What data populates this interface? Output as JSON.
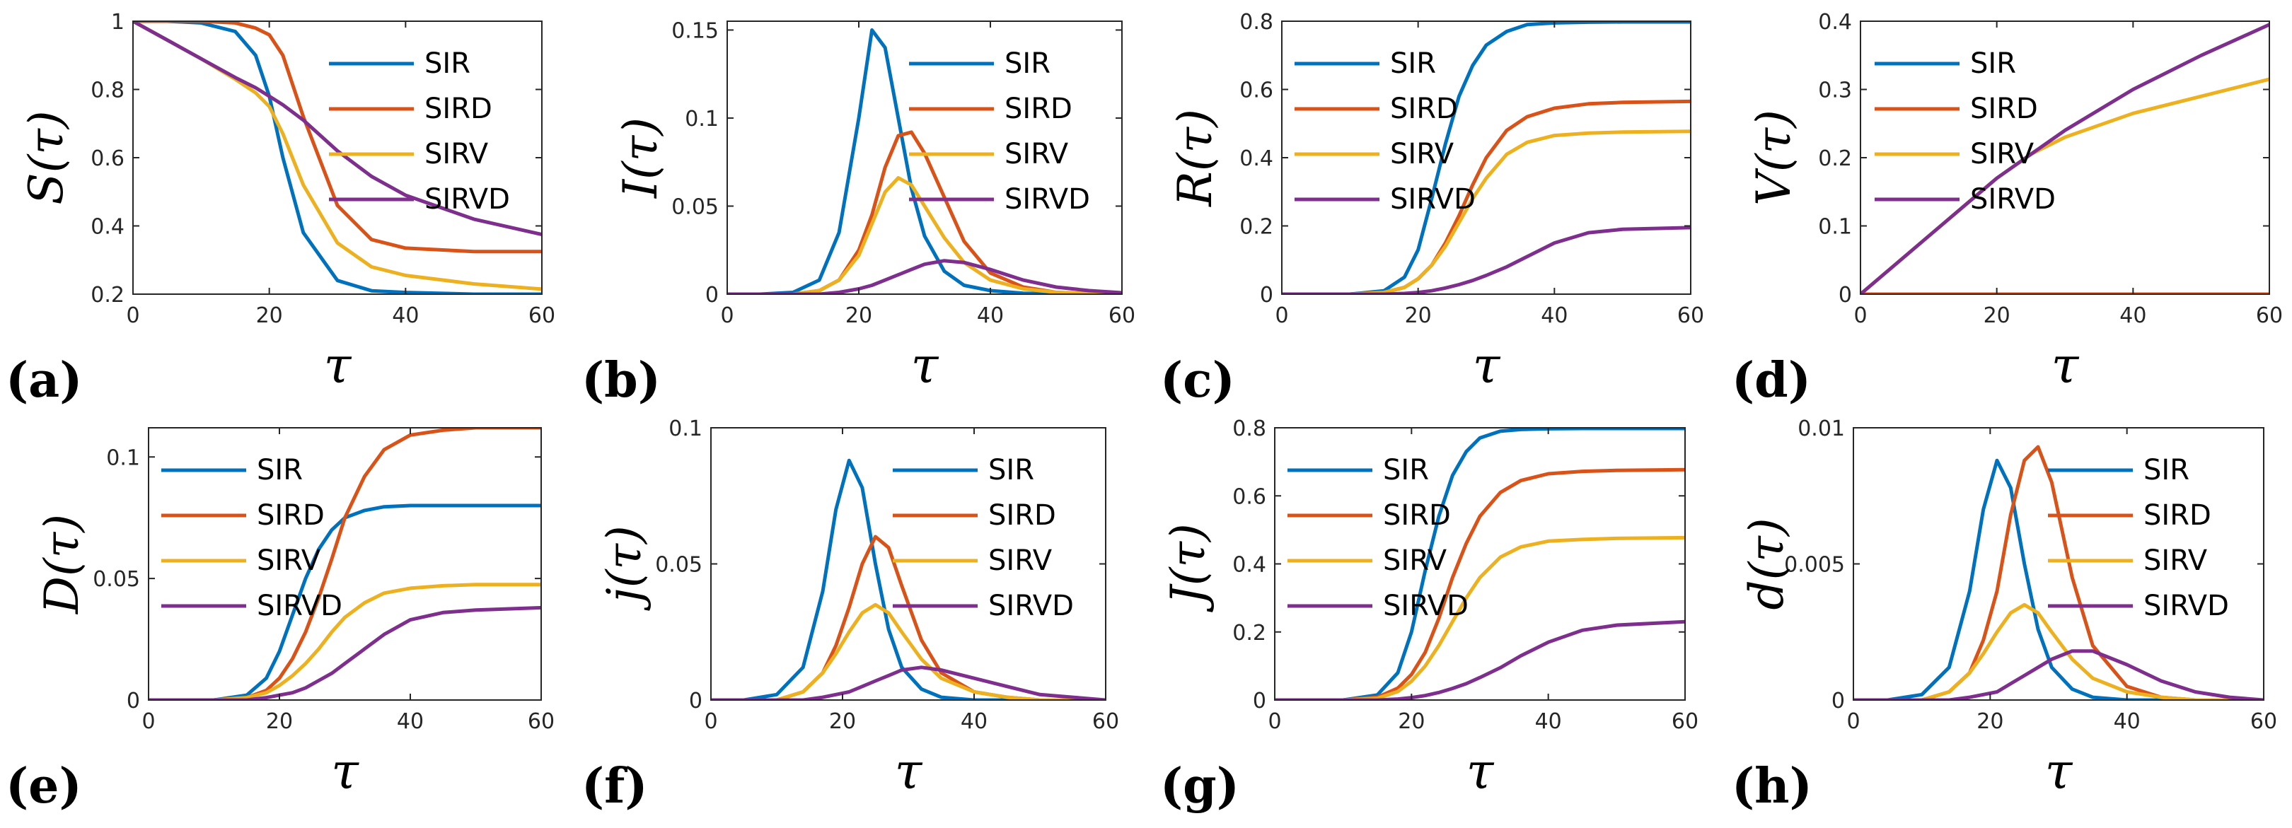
{
  "colors": {
    "SIR": "#0072BD",
    "SIRD": "#D95319",
    "SIRV": "#EDB120",
    "SIRVD": "#7E2F8E",
    "axis": "#262626"
  },
  "chart_data": [
    {
      "type": "line",
      "panel": "(a)",
      "ylabel": "S(τ)",
      "xlabel": "τ",
      "xlim": [
        0,
        60
      ],
      "ylim": [
        0.2,
        1
      ],
      "xticks": [
        0,
        20,
        40,
        60
      ],
      "xticklabels": [
        "0",
        "20",
        "40",
        "60"
      ],
      "yticks": [
        0.2,
        0.4,
        0.6,
        0.8,
        1
      ],
      "yticklabels": [
        "0.2",
        "0.4",
        "0.6",
        "0.8",
        "1"
      ],
      "legend": [
        "SIR",
        "SIRD",
        "SIRV",
        "SIRVD"
      ],
      "x": [
        0,
        5,
        10,
        15,
        18,
        20,
        22,
        25,
        30,
        35,
        40,
        50,
        60
      ],
      "series": [
        {
          "name": "SIR",
          "values": [
            1,
            1,
            0.995,
            0.97,
            0.9,
            0.78,
            0.6,
            0.38,
            0.24,
            0.21,
            0.205,
            0.2,
            0.2
          ]
        },
        {
          "name": "SIRD",
          "values": [
            1,
            1,
            1,
            0.995,
            0.98,
            0.96,
            0.9,
            0.72,
            0.46,
            0.36,
            0.335,
            0.325,
            0.325
          ]
        },
        {
          "name": "SIRV",
          "values": [
            1,
            0.945,
            0.89,
            0.83,
            0.79,
            0.75,
            0.67,
            0.52,
            0.35,
            0.28,
            0.255,
            0.23,
            0.215
          ]
        },
        {
          "name": "SIRVD",
          "values": [
            1,
            0.945,
            0.89,
            0.835,
            0.805,
            0.78,
            0.755,
            0.71,
            0.62,
            0.545,
            0.49,
            0.42,
            0.375
          ]
        }
      ]
    },
    {
      "type": "line",
      "panel": "(b)",
      "ylabel": "I(τ)",
      "xlabel": "τ",
      "xlim": [
        0,
        60
      ],
      "ylim": [
        0,
        0.155
      ],
      "xticks": [
        0,
        20,
        40,
        60
      ],
      "xticklabels": [
        "0",
        "20",
        "40",
        "60"
      ],
      "yticks": [
        0,
        0.05,
        0.1,
        0.15
      ],
      "yticklabels": [
        "0",
        "0.05",
        "0.1",
        "0.15"
      ],
      "legend": [
        "SIR",
        "SIRD",
        "SIRV",
        "SIRVD"
      ],
      "x": [
        0,
        5,
        10,
        14,
        17,
        20,
        22,
        24,
        26,
        28,
        30,
        33,
        36,
        40,
        45,
        50,
        55,
        60
      ],
      "series": [
        {
          "name": "SIR",
          "values": [
            0,
            0,
            0.001,
            0.008,
            0.035,
            0.1,
            0.15,
            0.14,
            0.1,
            0.06,
            0.033,
            0.013,
            0.005,
            0.002,
            0.0005,
            0.0001,
            0,
            0
          ]
        },
        {
          "name": "SIRD",
          "values": [
            0,
            0,
            0,
            0.002,
            0.008,
            0.025,
            0.045,
            0.072,
            0.09,
            0.092,
            0.08,
            0.055,
            0.03,
            0.012,
            0.004,
            0.001,
            0.0003,
            0
          ]
        },
        {
          "name": "SIRV",
          "values": [
            0,
            0,
            0,
            0.002,
            0.008,
            0.022,
            0.04,
            0.058,
            0.066,
            0.062,
            0.05,
            0.032,
            0.018,
            0.008,
            0.003,
            0.001,
            0.0003,
            0
          ]
        },
        {
          "name": "SIRVD",
          "values": [
            0,
            0,
            0,
            0,
            0.001,
            0.003,
            0.005,
            0.008,
            0.011,
            0.014,
            0.017,
            0.019,
            0.018,
            0.014,
            0.008,
            0.004,
            0.002,
            0.0008
          ]
        }
      ]
    },
    {
      "type": "line",
      "panel": "(c)",
      "ylabel": "R(τ)",
      "xlabel": "τ",
      "xlim": [
        0,
        60
      ],
      "ylim": [
        0,
        0.8
      ],
      "xticks": [
        0,
        20,
        40,
        60
      ],
      "xticklabels": [
        "0",
        "20",
        "40",
        "60"
      ],
      "yticks": [
        0,
        0.2,
        0.4,
        0.6,
        0.8
      ],
      "yticklabels": [
        "0",
        "0.2",
        "0.4",
        "0.6",
        "0.8"
      ],
      "legend": [
        "SIR",
        "SIRD",
        "SIRV",
        "SIRVD"
      ],
      "x": [
        0,
        10,
        15,
        18,
        20,
        22,
        24,
        26,
        28,
        30,
        33,
        36,
        40,
        45,
        50,
        60
      ],
      "series": [
        {
          "name": "SIR",
          "values": [
            0,
            0,
            0.01,
            0.05,
            0.13,
            0.28,
            0.44,
            0.58,
            0.67,
            0.73,
            0.77,
            0.79,
            0.795,
            0.797,
            0.798,
            0.798
          ]
        },
        {
          "name": "SIRD",
          "values": [
            0,
            0,
            0.005,
            0.02,
            0.045,
            0.085,
            0.15,
            0.23,
            0.32,
            0.4,
            0.48,
            0.52,
            0.545,
            0.558,
            0.562,
            0.565
          ]
        },
        {
          "name": "SIRV",
          "values": [
            0,
            0,
            0.005,
            0.02,
            0.045,
            0.085,
            0.14,
            0.21,
            0.28,
            0.34,
            0.41,
            0.445,
            0.465,
            0.472,
            0.475,
            0.477
          ]
        },
        {
          "name": "SIRVD",
          "values": [
            0,
            0,
            0,
            0.002,
            0.005,
            0.01,
            0.018,
            0.028,
            0.04,
            0.055,
            0.08,
            0.11,
            0.15,
            0.18,
            0.19,
            0.195
          ]
        }
      ]
    },
    {
      "type": "line",
      "panel": "(d)",
      "ylabel": "V(τ)",
      "xlabel": "τ",
      "xlim": [
        0,
        60
      ],
      "ylim": [
        0,
        0.4
      ],
      "xticks": [
        0,
        20,
        40,
        60
      ],
      "xticklabels": [
        "0",
        "20",
        "40",
        "60"
      ],
      "yticks": [
        0,
        0.1,
        0.2,
        0.3,
        0.4
      ],
      "yticklabels": [
        "0",
        "0.1",
        "0.2",
        "0.3",
        "0.4"
      ],
      "legend": [
        "SIR",
        "SIRD",
        "SIRV",
        "SIRVD"
      ],
      "x": [
        0,
        10,
        20,
        25,
        30,
        40,
        50,
        60
      ],
      "series": [
        {
          "name": "SIR",
          "values": [
            0,
            0,
            0,
            0,
            0,
            0,
            0,
            0
          ]
        },
        {
          "name": "SIRD",
          "values": [
            0,
            0,
            0,
            0,
            0,
            0,
            0,
            0
          ]
        },
        {
          "name": "SIRV",
          "values": [
            0,
            0.085,
            0.17,
            0.205,
            0.23,
            0.265,
            0.29,
            0.315
          ]
        },
        {
          "name": "SIRVD",
          "values": [
            0,
            0.085,
            0.17,
            0.205,
            0.24,
            0.3,
            0.35,
            0.395
          ]
        }
      ]
    },
    {
      "type": "line",
      "panel": "(e)",
      "ylabel": "D(τ)",
      "xlabel": "τ",
      "xlim": [
        0,
        60
      ],
      "ylim": [
        0,
        0.112
      ],
      "xticks": [
        0,
        20,
        40,
        60
      ],
      "xticklabels": [
        "0",
        "20",
        "40",
        "60"
      ],
      "yticks": [
        0,
        0.05,
        0.1
      ],
      "yticklabels": [
        "0",
        "0.05",
        "0.1"
      ],
      "legend": [
        "SIR",
        "SIRD",
        "SIRV",
        "SIRVD"
      ],
      "x": [
        0,
        10,
        15,
        18,
        20,
        22,
        24,
        26,
        28,
        30,
        33,
        36,
        40,
        45,
        50,
        60
      ],
      "series": [
        {
          "name": "SIR",
          "values": [
            0,
            0,
            0.002,
            0.009,
            0.02,
            0.035,
            0.05,
            0.062,
            0.07,
            0.075,
            0.078,
            0.0795,
            0.08,
            0.08,
            0.08,
            0.08
          ]
        },
        {
          "name": "SIRD",
          "values": [
            0,
            0,
            0.001,
            0.004,
            0.009,
            0.017,
            0.028,
            0.042,
            0.058,
            0.075,
            0.092,
            0.103,
            0.109,
            0.111,
            0.112,
            0.112
          ]
        },
        {
          "name": "SIRV",
          "values": [
            0,
            0,
            0.001,
            0.003,
            0.006,
            0.01,
            0.015,
            0.021,
            0.028,
            0.034,
            0.04,
            0.044,
            0.046,
            0.047,
            0.0475,
            0.0475
          ]
        },
        {
          "name": "SIRVD",
          "values": [
            0,
            0,
            0,
            0.001,
            0.002,
            0.003,
            0.005,
            0.008,
            0.011,
            0.015,
            0.021,
            0.027,
            0.033,
            0.036,
            0.037,
            0.038
          ]
        }
      ]
    },
    {
      "type": "line",
      "panel": "(f)",
      "ylabel": "j(τ)",
      "xlabel": "τ",
      "xlim": [
        0,
        60
      ],
      "ylim": [
        0,
        0.1
      ],
      "xticks": [
        0,
        20,
        40,
        60
      ],
      "xticklabels": [
        "0",
        "20",
        "40",
        "60"
      ],
      "yticks": [
        0,
        0.05,
        0.1
      ],
      "yticklabels": [
        "0",
        "0.05",
        "0.1"
      ],
      "legend": [
        "SIR",
        "SIRD",
        "SIRV",
        "SIRVD"
      ],
      "x": [
        0,
        5,
        10,
        14,
        17,
        19,
        21,
        23,
        25,
        27,
        29,
        32,
        35,
        40,
        45,
        50,
        55,
        60
      ],
      "series": [
        {
          "name": "SIR",
          "values": [
            0,
            0,
            0.002,
            0.012,
            0.04,
            0.07,
            0.088,
            0.078,
            0.05,
            0.026,
            0.012,
            0.004,
            0.001,
            0,
            0,
            0,
            0,
            0
          ]
        },
        {
          "name": "SIRD",
          "values": [
            0,
            0,
            0,
            0.003,
            0.01,
            0.02,
            0.034,
            0.05,
            0.06,
            0.056,
            0.042,
            0.022,
            0.01,
            0.003,
            0.001,
            0,
            0,
            0
          ]
        },
        {
          "name": "SIRV",
          "values": [
            0,
            0,
            0,
            0.003,
            0.01,
            0.017,
            0.025,
            0.032,
            0.035,
            0.032,
            0.025,
            0.015,
            0.008,
            0.003,
            0.001,
            0,
            0,
            0
          ]
        },
        {
          "name": "SIRVD",
          "values": [
            0,
            0,
            0,
            0,
            0.001,
            0.002,
            0.003,
            0.005,
            0.007,
            0.009,
            0.011,
            0.012,
            0.011,
            0.008,
            0.005,
            0.002,
            0.001,
            0
          ]
        }
      ]
    },
    {
      "type": "line",
      "panel": "(g)",
      "ylabel": "J(τ)",
      "xlabel": "τ",
      "xlim": [
        0,
        60
      ],
      "ylim": [
        0,
        0.8
      ],
      "xticks": [
        0,
        20,
        40,
        60
      ],
      "xticklabels": [
        "0",
        "20",
        "40",
        "60"
      ],
      "yticks": [
        0,
        0.2,
        0.4,
        0.6,
        0.8
      ],
      "yticklabels": [
        "0",
        "0.2",
        "0.4",
        "0.6",
        "0.8"
      ],
      "legend": [
        "SIR",
        "SIRD",
        "SIRV",
        "SIRVD"
      ],
      "x": [
        0,
        10,
        15,
        18,
        20,
        22,
        24,
        26,
        28,
        30,
        33,
        36,
        40,
        45,
        50,
        60
      ],
      "series": [
        {
          "name": "SIR",
          "values": [
            0,
            0,
            0.015,
            0.08,
            0.2,
            0.38,
            0.54,
            0.66,
            0.73,
            0.77,
            0.79,
            0.795,
            0.797,
            0.798,
            0.798,
            0.798
          ]
        },
        {
          "name": "SIRD",
          "values": [
            0,
            0,
            0.008,
            0.035,
            0.075,
            0.14,
            0.24,
            0.36,
            0.46,
            0.54,
            0.61,
            0.645,
            0.665,
            0.672,
            0.675,
            0.677
          ]
        },
        {
          "name": "SIRV",
          "values": [
            0,
            0,
            0.005,
            0.025,
            0.055,
            0.1,
            0.16,
            0.23,
            0.3,
            0.36,
            0.42,
            0.45,
            0.467,
            0.472,
            0.475,
            0.477
          ]
        },
        {
          "name": "SIRVD",
          "values": [
            0,
            0,
            0,
            0.003,
            0.007,
            0.013,
            0.022,
            0.034,
            0.048,
            0.066,
            0.095,
            0.13,
            0.17,
            0.205,
            0.22,
            0.23
          ]
        }
      ]
    },
    {
      "type": "line",
      "panel": "(h)",
      "ylabel": "d(τ)",
      "xlabel": "τ",
      "xlim": [
        0,
        60
      ],
      "ylim": [
        0,
        0.01
      ],
      "xticks": [
        0,
        20,
        40,
        60
      ],
      "xticklabels": [
        "0",
        "20",
        "40",
        "60"
      ],
      "yticks": [
        0,
        0.005,
        0.01
      ],
      "yticklabels": [
        "0",
        "0.005",
        "0.01"
      ],
      "legend": [
        "SIR",
        "SIRD",
        "SIRV",
        "SIRVD"
      ],
      "x": [
        0,
        5,
        10,
        14,
        17,
        19,
        21,
        23,
        25,
        27,
        29,
        32,
        35,
        40,
        45,
        50,
        55,
        60
      ],
      "series": [
        {
          "name": "SIR",
          "values": [
            0,
            0,
            0.0002,
            0.0012,
            0.004,
            0.007,
            0.0088,
            0.0078,
            0.005,
            0.0026,
            0.0012,
            0.0004,
            0.0001,
            0,
            0,
            0,
            0,
            0
          ]
        },
        {
          "name": "SIRD",
          "values": [
            0,
            0,
            0,
            0.0003,
            0.001,
            0.0022,
            0.004,
            0.0068,
            0.0088,
            0.0093,
            0.008,
            0.0045,
            0.002,
            0.0005,
            0.0001,
            0,
            0,
            0
          ]
        },
        {
          "name": "SIRV",
          "values": [
            0,
            0,
            0,
            0.0003,
            0.001,
            0.0017,
            0.0025,
            0.0032,
            0.0035,
            0.0032,
            0.0025,
            0.0015,
            0.0008,
            0.0003,
            0.0001,
            0,
            0,
            0
          ]
        },
        {
          "name": "SIRVD",
          "values": [
            0,
            0,
            0,
            0,
            0.0001,
            0.0002,
            0.0003,
            0.0006,
            0.0009,
            0.0012,
            0.0015,
            0.0018,
            0.0018,
            0.0013,
            0.0007,
            0.0003,
            0.0001,
            0
          ]
        }
      ]
    }
  ]
}
